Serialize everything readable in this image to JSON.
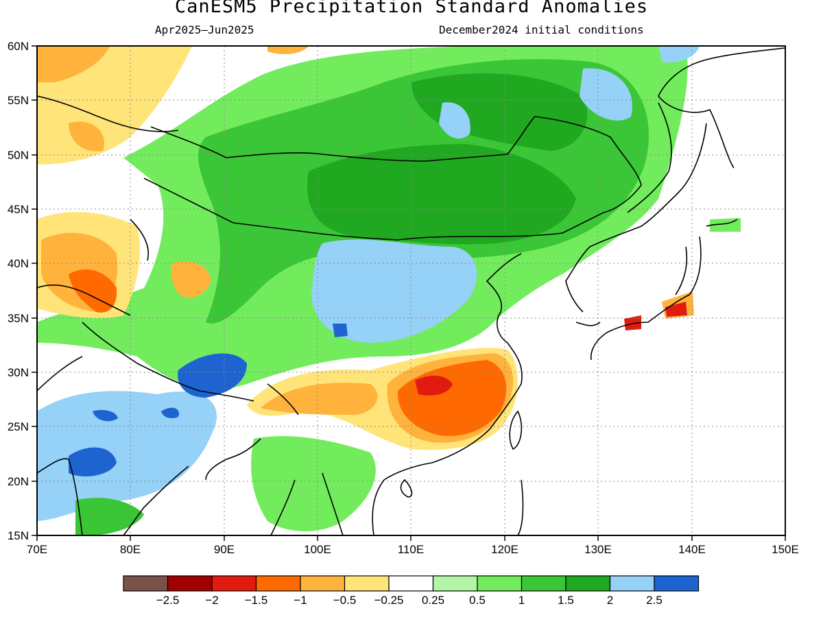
{
  "title": "CanESM5 Precipitation Standard Anomalies",
  "period": "Apr2025—Jun2025",
  "initial_conditions": "December2024 initial conditions",
  "map_extent": {
    "lon": [
      70,
      150
    ],
    "lat": [
      15,
      60
    ]
  },
  "x_ticks": [
    "70E",
    "80E",
    "90E",
    "100E",
    "110E",
    "120E",
    "130E",
    "140E",
    "150E"
  ],
  "y_ticks": [
    "15N",
    "20N",
    "25N",
    "30N",
    "35N",
    "40N",
    "45N",
    "50N",
    "55N",
    "60N"
  ],
  "grid": "dotted",
  "colorbar": {
    "colors": [
      "#7a5348",
      "#a00000",
      "#e11b0f",
      "#ff6a00",
      "#ffb33d",
      "#ffe47a",
      "#ffffff",
      "#b2f5a4",
      "#72ec5d",
      "#3ac636",
      "#21a821",
      "#96d1f7",
      "#1e64d0"
    ],
    "labels": [
      "−2.5",
      "−2",
      "−1.5",
      "−1",
      "−0.5",
      "−0.25",
      "0.25",
      "0.5",
      "1",
      "1.5",
      "2",
      "2.5"
    ]
  }
}
